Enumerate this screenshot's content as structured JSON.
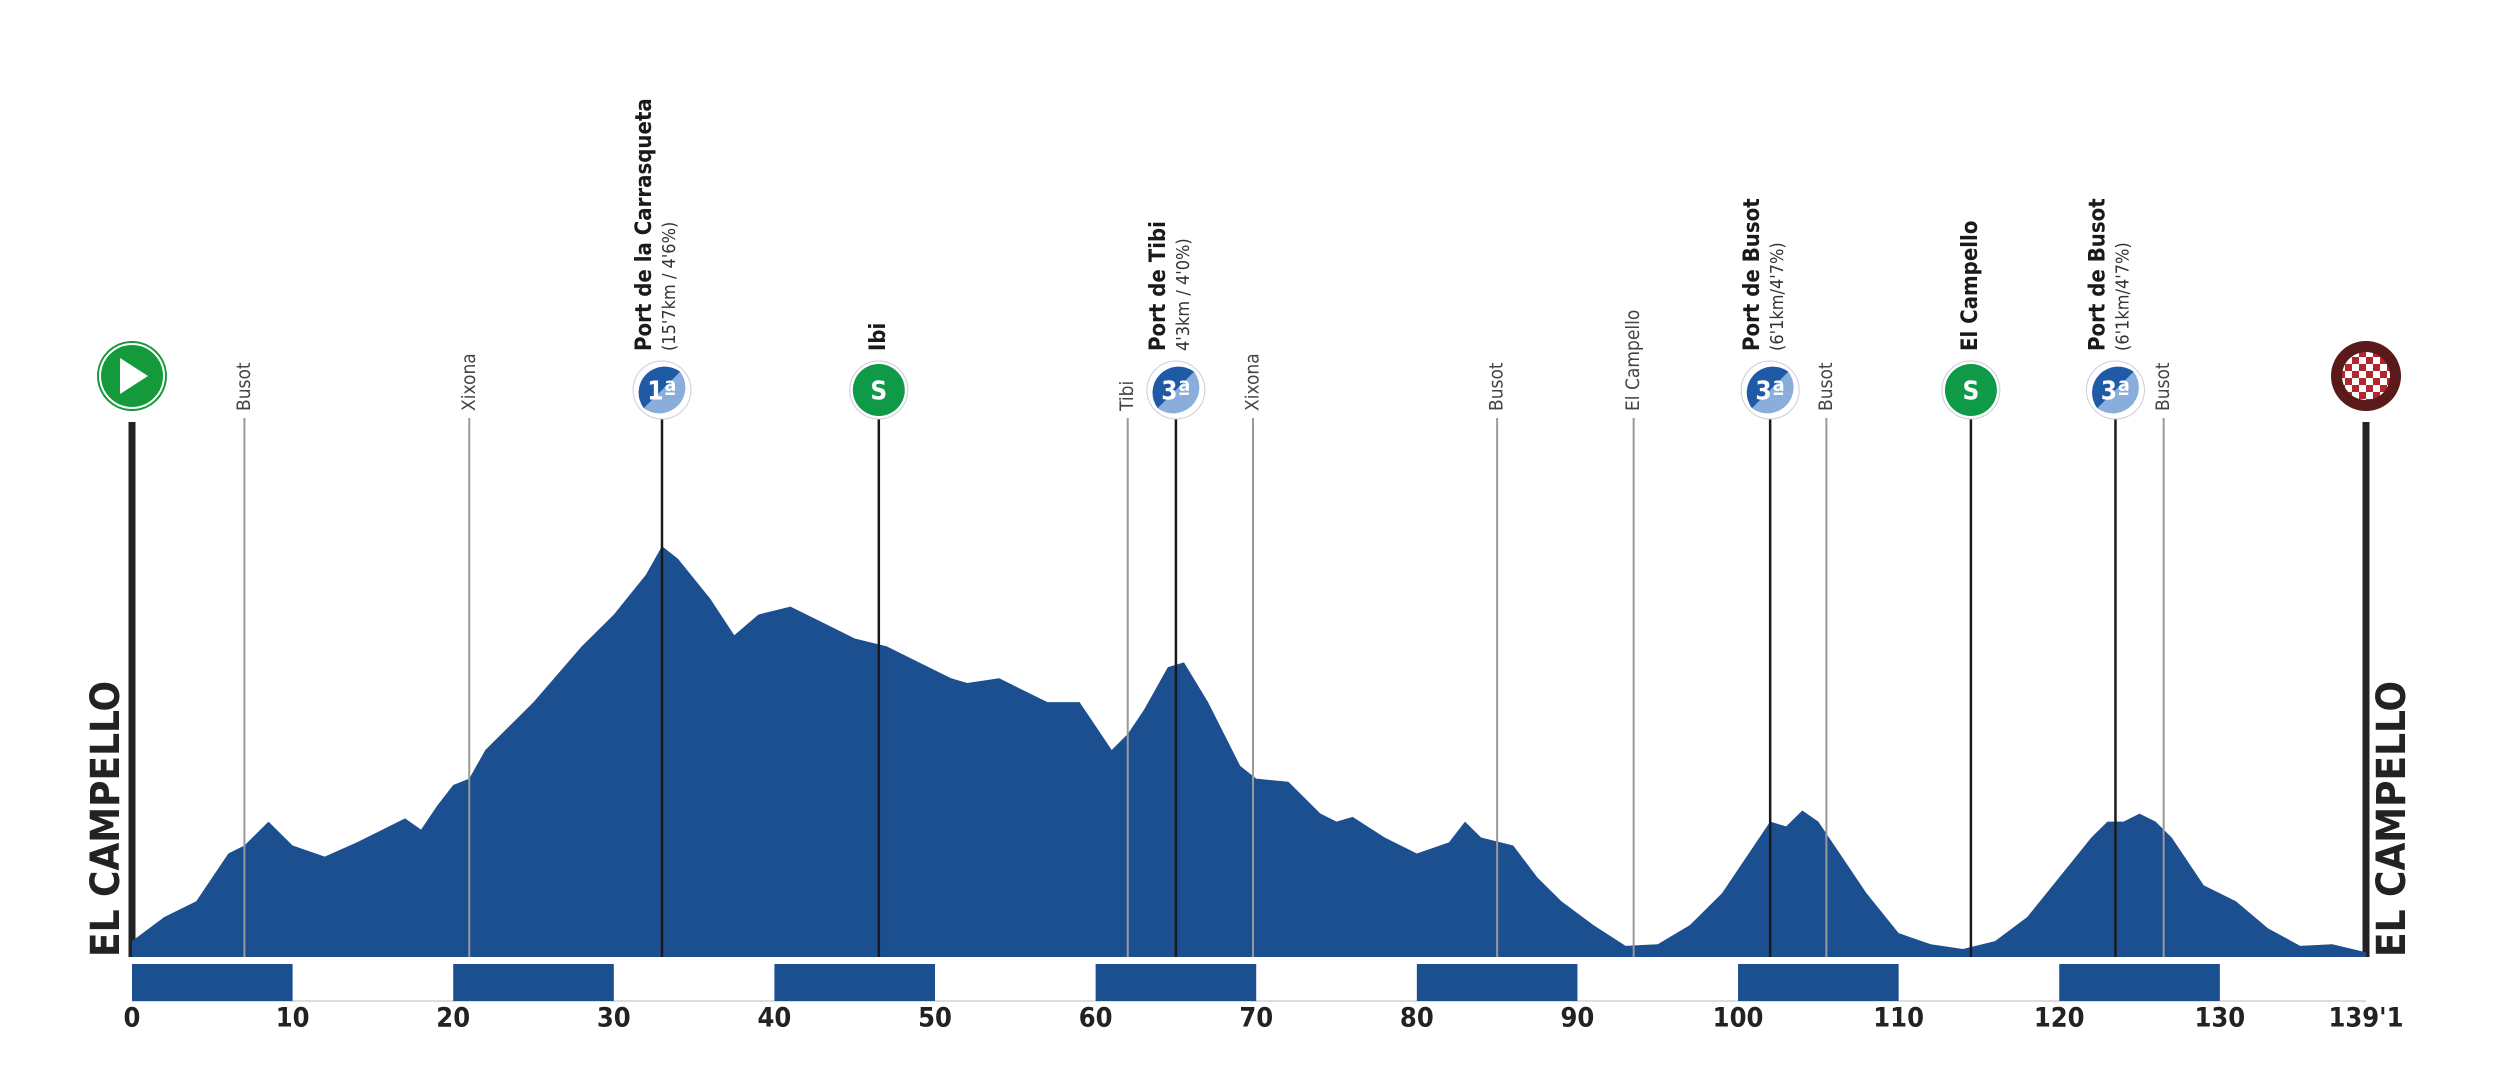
{
  "chart_data": {
    "type": "area",
    "x": [
      0,
      2,
      4,
      6,
      7,
      8.5,
      10,
      12,
      14,
      16,
      17,
      18,
      19,
      20,
      21,
      22,
      25,
      28,
      30,
      32,
      33,
      34,
      36,
      37.5,
      39,
      41,
      43,
      45,
      47,
      49,
      51,
      52,
      54,
      56,
      57,
      59,
      60,
      61,
      62,
      63,
      64.5,
      65.5,
      67,
      69,
      70,
      72,
      74,
      75,
      76,
      78,
      80,
      82,
      83,
      84,
      86,
      87.5,
      89,
      91,
      93,
      95,
      97,
      99,
      101,
      102,
      103,
      104,
      105,
      106,
      108,
      110,
      112,
      114,
      116,
      118,
      120,
      122,
      123,
      124,
      125,
      126,
      127,
      129,
      131,
      133,
      135,
      137,
      139.1
    ],
    "values": [
      40,
      100,
      140,
      260,
      280,
      340,
      280,
      252,
      288,
      328,
      348,
      320,
      380,
      432,
      448,
      520,
      640,
      780,
      860,
      960,
      1032,
      1000,
      900,
      808,
      860,
      880,
      840,
      800,
      780,
      740,
      700,
      688,
      700,
      660,
      640,
      640,
      580,
      520,
      560,
      620,
      728,
      740,
      640,
      480,
      448,
      440,
      360,
      340,
      352,
      300,
      260,
      288,
      340,
      300,
      280,
      200,
      140,
      80,
      28,
      32,
      80,
      160,
      280,
      340,
      328,
      368,
      340,
      280,
      160,
      60,
      32,
      20,
      40,
      100,
      200,
      300,
      340,
      340,
      360,
      340,
      300,
      180,
      140,
      72,
      28,
      32,
      12
    ],
    "color": "#1b4f8f",
    "xlim": [
      0,
      139.1
    ],
    "ylim": [
      0,
      1100
    ],
    "xticks": [
      0,
      10,
      20,
      30,
      40,
      50,
      60,
      70,
      80,
      90,
      100,
      110,
      120,
      130,
      {
        "value": 139.1,
        "label": "139'1"
      }
    ],
    "start_label": "EL CAMPELLO",
    "finish_label": "EL CAMPELLO",
    "markers": [
      {
        "x": 7,
        "kind": "place",
        "name": "Busot"
      },
      {
        "x": 21,
        "kind": "place",
        "name": "Xixona"
      },
      {
        "x": 33,
        "kind": "climb",
        "name": "Port de la Carrasqueta",
        "detail": "(15'7km / 4'6%)",
        "badge": "1ª",
        "color": "#1f5aa6"
      },
      {
        "x": 46.5,
        "kind": "sprint",
        "name": "Ibi",
        "badge": "S",
        "color": "#0f9a48"
      },
      {
        "x": 62,
        "kind": "place",
        "name": "Tibi"
      },
      {
        "x": 65,
        "kind": "climb",
        "name": "Port de Tibi",
        "detail": "4'3km / 4'0%)",
        "badge": "3ª",
        "color": "#1f5aa6"
      },
      {
        "x": 69.8,
        "kind": "place",
        "name": "Xixona"
      },
      {
        "x": 85,
        "kind": "place",
        "name": "Busot"
      },
      {
        "x": 93.5,
        "kind": "place",
        "name": "El Campello"
      },
      {
        "x": 102,
        "kind": "climb",
        "name": "Port de Busot",
        "detail": "(6'1km/4'7%)",
        "badge": "3ª",
        "color": "#1f5aa6"
      },
      {
        "x": 105.5,
        "kind": "place",
        "name": "Busot"
      },
      {
        "x": 114.5,
        "kind": "sprint",
        "name": "El Campello",
        "badge": "S",
        "color": "#0f9a48"
      },
      {
        "x": 123.5,
        "kind": "climb",
        "name": "Port de Busot",
        "detail": "(6'1km/4'7%)",
        "badge": "3ª",
        "color": "#1f5aa6"
      },
      {
        "x": 126.5,
        "kind": "place",
        "name": "Busot"
      }
    ]
  }
}
